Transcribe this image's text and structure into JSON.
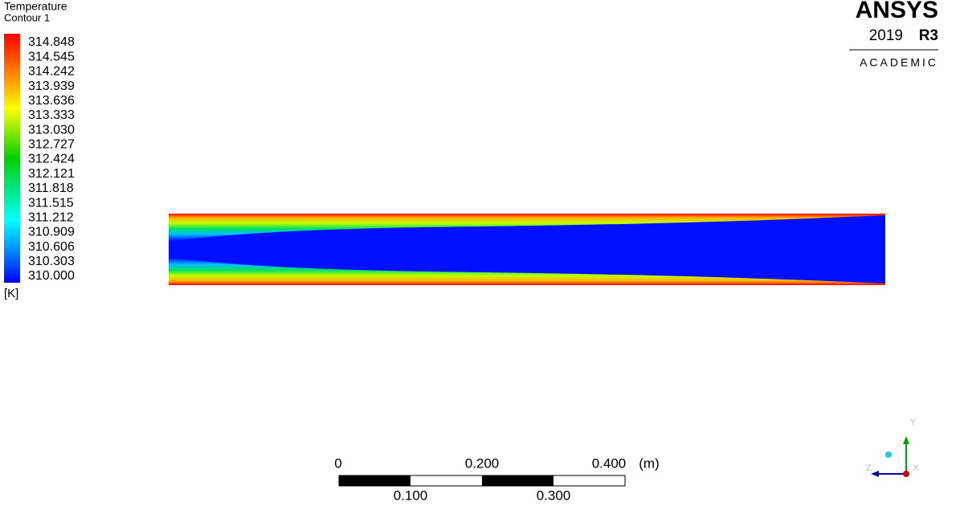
{
  "legend": {
    "title": "Temperature",
    "subtitle": "Contour 1",
    "levels": [
      "314.848",
      "314.545",
      "314.242",
      "313.939",
      "313.636",
      "313.333",
      "313.030",
      "312.727",
      "312.424",
      "312.121",
      "311.818",
      "311.515",
      "311.212",
      "310.909",
      "310.606",
      "310.303",
      "310.000"
    ],
    "unit": "[K]"
  },
  "logo": {
    "brand": "ANSYS",
    "year": "2019",
    "release": "R3",
    "edition": "ACADEMIC"
  },
  "scale_bar": {
    "top_labels": [
      "0",
      "0.200",
      "0.400"
    ],
    "unit": "(m)",
    "bottom_labels": [
      "0.100",
      "0.300"
    ]
  },
  "triad": {
    "y": "Y",
    "z": "Z",
    "x": "X"
  }
}
